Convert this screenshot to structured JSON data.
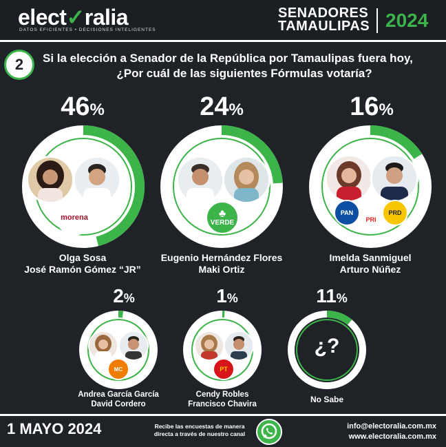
{
  "header": {
    "logo_prefix": "elect",
    "logo_check": "✓",
    "logo_suffix": "ralia",
    "tagline": "DATOS EFICIENTES • DECISIONES INTELIGENTES",
    "title_line1": "SENADORES",
    "title_line2": "TAMAULIPAS",
    "year": "2024"
  },
  "question": {
    "number": "2",
    "line1": "Si la elección a Senador de la República por Tamaulipas fuera hoy,",
    "line2": "¿Por cuál de las siguientes Fórmulas votaría?"
  },
  "options": [
    {
      "pct": 46,
      "pct_label": "46",
      "name1": "Olga Sosa",
      "name2": "José Ramón Gómez “JR”",
      "party": [
        "morena"
      ]
    },
    {
      "pct": 24,
      "pct_label": "24",
      "name1": "Eugenio Hernández Flores",
      "name2": "Maki Ortiz",
      "party": [
        "VERDE"
      ]
    },
    {
      "pct": 16,
      "pct_label": "16",
      "name1": "Imelda Sanmiguel",
      "name2": "Arturo Núñez",
      "party": [
        "PAN",
        "PRI",
        "PRD"
      ]
    },
    {
      "pct": 2,
      "pct_label": "2",
      "name1": "Andrea García García",
      "name2": "David Cordero",
      "party": [
        "MC"
      ]
    },
    {
      "pct": 1,
      "pct_label": "1",
      "name1": "Cendy Robles",
      "name2": "Francisco Chavira",
      "party": [
        "PT"
      ]
    },
    {
      "pct": 11,
      "pct_label": "11",
      "name1": "No Sabe",
      "name2": "",
      "symbol": "¿?"
    }
  ],
  "percent_sign": "%",
  "footer": {
    "date": "1 MAYO 2024",
    "recibe_line1": "Recibe las encuestas de manera",
    "recibe_line2": "directa a través de nuestro canal",
    "email": "info@electoralia.com.mx",
    "web": "www.electoralia.com.mx"
  },
  "colors": {
    "accent": "#3cb44a",
    "background": "#1f2328",
    "morena": "#a1122a",
    "pan": "#0b4fa3",
    "pri": "#e2231a",
    "prd": "#f7c600",
    "mc": "#f07c00",
    "pt": "#d7141a",
    "verde": "#3cb44a"
  }
}
